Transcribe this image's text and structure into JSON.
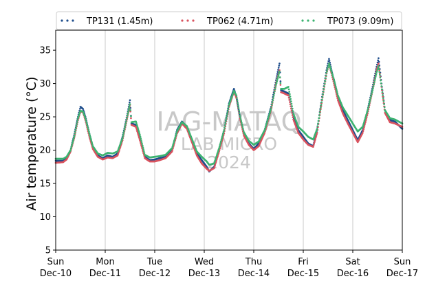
{
  "chart_data": {
    "type": "scatter",
    "ylabel": "Air temperature (°C)",
    "xlabel": "",
    "ylim": [
      5,
      38
    ],
    "yticks": [
      5,
      10,
      15,
      20,
      25,
      30,
      35
    ],
    "xlim": [
      0,
      7
    ],
    "xticks": [
      {
        "x": 0,
        "day": "Sun",
        "date": "Dec-10"
      },
      {
        "x": 1,
        "day": "Mon",
        "date": "Dec-11"
      },
      {
        "x": 2,
        "day": "Tue",
        "date": "Dec-12"
      },
      {
        "x": 3,
        "day": "Wed",
        "date": "Dec-13"
      },
      {
        "x": 4,
        "day": "Thu",
        "date": "Dec-14"
      },
      {
        "x": 5,
        "day": "Fri",
        "date": "Dec-15"
      },
      {
        "x": 6,
        "day": "Sat",
        "date": "Dec-16"
      },
      {
        "x": 7,
        "day": "Sun",
        "date": "Dec-17"
      }
    ],
    "x_unit": "days since Dec-10 00:00",
    "vertical_grid": true,
    "legend_position": "top",
    "watermark": [
      "IAG-MATAQ",
      "LAB MICRO",
      "2024"
    ],
    "series": [
      {
        "name": "TP131 (1.45m)",
        "color": "#1f4e8c",
        "points": [
          [
            0.0,
            18.4
          ],
          [
            0.15,
            18.4
          ],
          [
            0.22,
            18.8
          ],
          [
            0.3,
            20.0
          ],
          [
            0.38,
            22.5
          ],
          [
            0.45,
            25.0
          ],
          [
            0.5,
            26.5
          ],
          [
            0.55,
            26.2
          ],
          [
            0.6,
            25.0
          ],
          [
            0.68,
            22.5
          ],
          [
            0.75,
            20.5
          ],
          [
            0.85,
            19.2
          ],
          [
            0.95,
            18.8
          ],
          [
            1.05,
            19.2
          ],
          [
            1.15,
            19.0
          ],
          [
            1.25,
            19.5
          ],
          [
            1.35,
            22.0
          ],
          [
            1.45,
            25.5
          ],
          [
            1.5,
            27.5
          ],
          [
            1.53,
            24.0
          ],
          [
            1.62,
            23.8
          ],
          [
            1.7,
            22.0
          ],
          [
            1.8,
            19.0
          ],
          [
            1.9,
            18.5
          ],
          [
            2.0,
            18.6
          ],
          [
            2.1,
            18.8
          ],
          [
            2.22,
            19.0
          ],
          [
            2.35,
            20.0
          ],
          [
            2.45,
            23.0
          ],
          [
            2.55,
            24.3
          ],
          [
            2.65,
            23.5
          ],
          [
            2.75,
            21.5
          ],
          [
            2.85,
            19.5
          ],
          [
            2.95,
            18.5
          ],
          [
            3.05,
            17.5
          ],
          [
            3.1,
            16.8
          ],
          [
            3.2,
            17.5
          ],
          [
            3.3,
            20.0
          ],
          [
            3.4,
            23.0
          ],
          [
            3.5,
            27.0
          ],
          [
            3.6,
            29.2
          ],
          [
            3.65,
            28.0
          ],
          [
            3.72,
            25.0
          ],
          [
            3.8,
            22.5
          ],
          [
            3.9,
            21.0
          ],
          [
            4.0,
            20.2
          ],
          [
            4.1,
            21.0
          ],
          [
            4.22,
            23.0
          ],
          [
            4.35,
            26.5
          ],
          [
            4.45,
            30.5
          ],
          [
            4.52,
            33.0
          ],
          [
            4.55,
            29.0
          ],
          [
            4.62,
            28.8
          ],
          [
            4.7,
            28.5
          ],
          [
            4.8,
            25.0
          ],
          [
            4.9,
            23.0
          ],
          [
            5.0,
            22.0
          ],
          [
            5.1,
            21.0
          ],
          [
            5.2,
            20.6
          ],
          [
            5.28,
            23.0
          ],
          [
            5.38,
            28.0
          ],
          [
            5.47,
            32.0
          ],
          [
            5.52,
            33.7
          ],
          [
            5.57,
            32.0
          ],
          [
            5.62,
            30.5
          ],
          [
            5.7,
            28.0
          ],
          [
            5.8,
            26.0
          ],
          [
            5.9,
            24.5
          ],
          [
            6.0,
            23.0
          ],
          [
            6.1,
            21.5
          ],
          [
            6.2,
            23.0
          ],
          [
            6.3,
            26.0
          ],
          [
            6.4,
            29.5
          ],
          [
            6.48,
            32.5
          ],
          [
            6.52,
            33.8
          ],
          [
            6.58,
            30.0
          ],
          [
            6.65,
            26.0
          ],
          [
            6.75,
            24.5
          ],
          [
            6.85,
            24.3
          ],
          [
            7.0,
            23.2
          ]
        ]
      },
      {
        "name": "TP062 (4.71m)",
        "color": "#d9535f",
        "points": [
          [
            0.0,
            18.1
          ],
          [
            0.15,
            18.2
          ],
          [
            0.22,
            18.6
          ],
          [
            0.3,
            19.8
          ],
          [
            0.38,
            22.0
          ],
          [
            0.45,
            24.5
          ],
          [
            0.5,
            25.8
          ],
          [
            0.55,
            25.7
          ],
          [
            0.6,
            24.5
          ],
          [
            0.68,
            22.0
          ],
          [
            0.75,
            20.2
          ],
          [
            0.85,
            19.0
          ],
          [
            0.95,
            18.6
          ],
          [
            1.05,
            18.9
          ],
          [
            1.15,
            18.8
          ],
          [
            1.25,
            19.2
          ],
          [
            1.35,
            21.5
          ],
          [
            1.45,
            25.0
          ],
          [
            1.5,
            26.8
          ],
          [
            1.53,
            23.8
          ],
          [
            1.62,
            23.5
          ],
          [
            1.7,
            21.5
          ],
          [
            1.8,
            18.8
          ],
          [
            1.9,
            18.3
          ],
          [
            2.0,
            18.3
          ],
          [
            2.1,
            18.5
          ],
          [
            2.22,
            18.8
          ],
          [
            2.35,
            19.8
          ],
          [
            2.45,
            22.5
          ],
          [
            2.55,
            24.0
          ],
          [
            2.65,
            23.2
          ],
          [
            2.75,
            21.2
          ],
          [
            2.85,
            19.2
          ],
          [
            2.95,
            18.0
          ],
          [
            3.05,
            17.2
          ],
          [
            3.1,
            16.9
          ],
          [
            3.2,
            17.3
          ],
          [
            3.3,
            19.8
          ],
          [
            3.4,
            22.5
          ],
          [
            3.5,
            26.5
          ],
          [
            3.6,
            28.8
          ],
          [
            3.65,
            27.8
          ],
          [
            3.72,
            24.8
          ],
          [
            3.8,
            22.2
          ],
          [
            3.9,
            20.8
          ],
          [
            4.0,
            20.0
          ],
          [
            4.1,
            20.6
          ],
          [
            4.22,
            22.6
          ],
          [
            4.35,
            26.0
          ],
          [
            4.45,
            30.0
          ],
          [
            4.52,
            32.0
          ],
          [
            4.55,
            28.7
          ],
          [
            4.62,
            28.5
          ],
          [
            4.7,
            28.2
          ],
          [
            4.8,
            24.6
          ],
          [
            4.9,
            22.6
          ],
          [
            5.0,
            21.6
          ],
          [
            5.1,
            20.8
          ],
          [
            5.2,
            20.5
          ],
          [
            5.28,
            22.6
          ],
          [
            5.38,
            27.5
          ],
          [
            5.47,
            31.5
          ],
          [
            5.52,
            33.0
          ],
          [
            5.57,
            31.5
          ],
          [
            5.62,
            30.0
          ],
          [
            5.7,
            27.5
          ],
          [
            5.8,
            25.5
          ],
          [
            5.9,
            24.0
          ],
          [
            6.0,
            22.6
          ],
          [
            6.1,
            21.2
          ],
          [
            6.2,
            22.6
          ],
          [
            6.3,
            25.5
          ],
          [
            6.4,
            29.0
          ],
          [
            6.48,
            32.0
          ],
          [
            6.52,
            33.0
          ],
          [
            6.58,
            29.5
          ],
          [
            6.65,
            25.6
          ],
          [
            6.75,
            24.2
          ],
          [
            6.85,
            24.0
          ],
          [
            7.0,
            23.5
          ]
        ]
      },
      {
        "name": "TP073 (9.09m)",
        "color": "#3cb371",
        "points": [
          [
            0.0,
            18.7
          ],
          [
            0.15,
            18.7
          ],
          [
            0.22,
            19.0
          ],
          [
            0.3,
            20.0
          ],
          [
            0.38,
            22.2
          ],
          [
            0.45,
            24.8
          ],
          [
            0.5,
            25.9
          ],
          [
            0.55,
            25.8
          ],
          [
            0.6,
            24.8
          ],
          [
            0.68,
            22.5
          ],
          [
            0.75,
            20.6
          ],
          [
            0.85,
            19.5
          ],
          [
            0.95,
            19.2
          ],
          [
            1.05,
            19.6
          ],
          [
            1.15,
            19.5
          ],
          [
            1.25,
            19.8
          ],
          [
            1.35,
            21.8
          ],
          [
            1.45,
            25.2
          ],
          [
            1.5,
            26.9
          ],
          [
            1.53,
            24.2
          ],
          [
            1.62,
            24.3
          ],
          [
            1.7,
            22.3
          ],
          [
            1.8,
            19.3
          ],
          [
            1.9,
            18.9
          ],
          [
            2.0,
            19.0
          ],
          [
            2.1,
            19.1
          ],
          [
            2.22,
            19.3
          ],
          [
            2.35,
            20.3
          ],
          [
            2.45,
            22.8
          ],
          [
            2.55,
            24.2
          ],
          [
            2.65,
            23.6
          ],
          [
            2.75,
            21.7
          ],
          [
            2.85,
            19.8
          ],
          [
            2.95,
            19.0
          ],
          [
            3.05,
            18.3
          ],
          [
            3.1,
            17.8
          ],
          [
            3.2,
            18.0
          ],
          [
            3.3,
            20.3
          ],
          [
            3.4,
            23.0
          ],
          [
            3.5,
            26.8
          ],
          [
            3.6,
            28.9
          ],
          [
            3.65,
            28.2
          ],
          [
            3.72,
            25.2
          ],
          [
            3.8,
            22.7
          ],
          [
            3.9,
            21.4
          ],
          [
            4.0,
            20.8
          ],
          [
            4.1,
            21.3
          ],
          [
            4.22,
            23.0
          ],
          [
            4.35,
            26.2
          ],
          [
            4.45,
            29.8
          ],
          [
            4.52,
            31.8
          ],
          [
            4.55,
            29.2
          ],
          [
            4.62,
            29.2
          ],
          [
            4.7,
            29.5
          ],
          [
            4.8,
            25.5
          ],
          [
            4.9,
            23.5
          ],
          [
            5.0,
            22.8
          ],
          [
            5.1,
            22.0
          ],
          [
            5.2,
            21.6
          ],
          [
            5.28,
            23.2
          ],
          [
            5.38,
            27.6
          ],
          [
            5.47,
            31.6
          ],
          [
            5.52,
            33.0
          ],
          [
            5.57,
            31.8
          ],
          [
            5.62,
            30.6
          ],
          [
            5.7,
            28.2
          ],
          [
            5.8,
            26.4
          ],
          [
            5.9,
            25.2
          ],
          [
            6.0,
            24.0
          ],
          [
            6.1,
            22.8
          ],
          [
            6.2,
            23.5
          ],
          [
            6.3,
            26.0
          ],
          [
            6.4,
            29.0
          ],
          [
            6.48,
            31.6
          ],
          [
            6.52,
            32.6
          ],
          [
            6.58,
            29.6
          ],
          [
            6.65,
            26.0
          ],
          [
            6.75,
            24.8
          ],
          [
            6.85,
            24.6
          ],
          [
            7.0,
            24.0
          ]
        ]
      }
    ]
  }
}
